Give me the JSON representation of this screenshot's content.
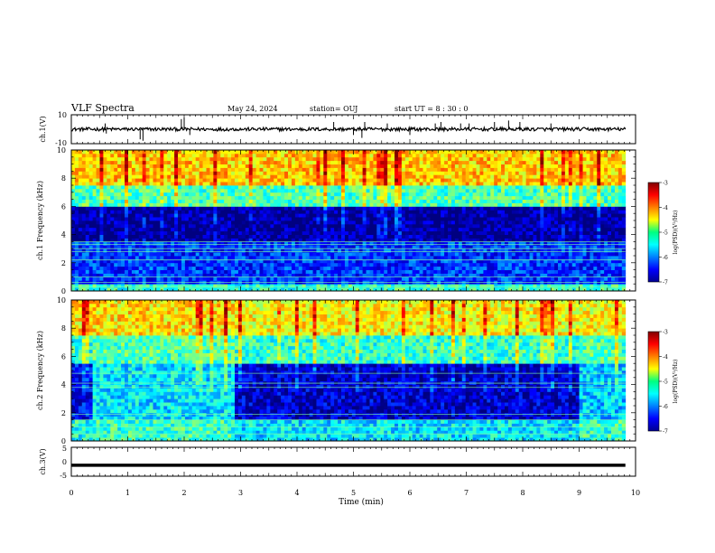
{
  "header": {
    "title": "VLF Spectra",
    "date": "May 24, 2024",
    "station": "station= OUJ",
    "start": "start UT = 8 : 30 : 0"
  },
  "chart_data": [
    {
      "type": "line",
      "panel": "ch1-waveform",
      "ylabel": "ch.1(V)",
      "ylim": [
        -10,
        10
      ],
      "yticks": [
        "10",
        "-10"
      ],
      "baseline": 0,
      "noise_amplitude": 1.2,
      "spikes": [
        {
          "x": 0.6,
          "y": 4
        },
        {
          "x": 0.62,
          "y": -3
        },
        {
          "x": 1.22,
          "y": -7
        },
        {
          "x": 1.27,
          "y": -8
        },
        {
          "x": 1.95,
          "y": 7
        },
        {
          "x": 2.0,
          "y": 8
        },
        {
          "x": 2.1,
          "y": -4
        },
        {
          "x": 4.65,
          "y": 5
        },
        {
          "x": 5.0,
          "y": -4
        },
        {
          "x": 5.15,
          "y": -6
        },
        {
          "x": 5.2,
          "y": 5
        },
        {
          "x": 5.6,
          "y": 4
        },
        {
          "x": 6.0,
          "y": -4
        },
        {
          "x": 6.45,
          "y": 4
        },
        {
          "x": 6.55,
          "y": 5
        },
        {
          "x": 6.9,
          "y": 4
        },
        {
          "x": 7.05,
          "y": 4
        },
        {
          "x": 7.5,
          "y": 5
        },
        {
          "x": 7.75,
          "y": 6
        },
        {
          "x": 7.95,
          "y": 5
        },
        {
          "x": 8.5,
          "y": 4
        }
      ],
      "xlim": [
        0,
        10
      ],
      "data_end_min": 9.82
    },
    {
      "type": "heatmap",
      "panel": "ch1-spectrogram",
      "ylabel": "ch.1 Frequency (kHz)",
      "ylim": [
        0,
        10
      ],
      "yticks": [
        "0",
        "2",
        "4",
        "6",
        "8",
        "10"
      ],
      "xlim": [
        0,
        10
      ],
      "colorbar": {
        "label": "log(PSD)(V²/Hz)",
        "range": [
          -7,
          -3
        ],
        "ticks": [
          "-3",
          "-4",
          "-5",
          "-6",
          "-7"
        ]
      },
      "bands": [
        {
          "f_from": 0,
          "f_to": 0.5,
          "log_psd": -5.3
        },
        {
          "f_from": 0.5,
          "f_to": 3.5,
          "log_psd": -6.3
        },
        {
          "f_from": 3.5,
          "f_to": 6.0,
          "log_psd": -6.9
        },
        {
          "f_from": 6.0,
          "f_to": 7.5,
          "log_psd": -5.2
        },
        {
          "f_from": 7.5,
          "f_to": 10,
          "log_psd": -4.3
        }
      ],
      "line_frequencies_khz": [
        0.3,
        0.6,
        1.0,
        2.2,
        2.8,
        3.0,
        3.3,
        3.5
      ],
      "data_end_min": 9.82
    },
    {
      "type": "heatmap",
      "panel": "ch2-spectrogram",
      "ylabel": "ch.2 Frequency (kHz)",
      "ylim": [
        0,
        10
      ],
      "yticks": [
        "0",
        "2",
        "4",
        "6",
        "8",
        "10"
      ],
      "xlim": [
        0,
        10
      ],
      "colorbar": {
        "label": "log(PSD)(V²/Hz)",
        "range": [
          -7,
          -3
        ],
        "ticks": [
          "-3",
          "-4",
          "-5",
          "-6",
          "-7"
        ]
      },
      "segments": [
        {
          "t_from": 0.0,
          "t_to": 0.4,
          "bands": [
            [
              0,
              1.5,
              -5.4
            ],
            [
              1.5,
              5.5,
              -6.5
            ],
            [
              5.5,
              7.5,
              -5.3
            ],
            [
              7.5,
              10,
              -4.4
            ]
          ]
        },
        {
          "t_from": 0.4,
          "t_to": 2.9,
          "bands": [
            [
              0,
              1.5,
              -5.3
            ],
            [
              1.5,
              5.5,
              -5.6
            ],
            [
              5.5,
              7.5,
              -5.2
            ],
            [
              7.5,
              10,
              -4.4
            ]
          ]
        },
        {
          "t_from": 2.9,
          "t_to": 9.0,
          "bands": [
            [
              0,
              1.5,
              -5.6
            ],
            [
              1.5,
              5.5,
              -6.7
            ],
            [
              5.5,
              7.5,
              -5.3
            ],
            [
              7.5,
              10,
              -4.5
            ]
          ]
        },
        {
          "t_from": 9.0,
          "t_to": 9.82,
          "bands": [
            [
              0,
              1.5,
              -5.3
            ],
            [
              1.5,
              5.5,
              -5.7
            ],
            [
              5.5,
              7.5,
              -5.2
            ],
            [
              7.5,
              10,
              -4.5
            ]
          ]
        }
      ],
      "line_frequencies_khz": [
        0.5,
        1.0,
        1.5,
        1.9,
        3.8,
        4.1,
        4.8
      ],
      "data_end_min": 9.82
    },
    {
      "type": "line",
      "panel": "ch3-waveform",
      "ylabel": "ch.3(V)",
      "ylim": [
        -5,
        5
      ],
      "yticks": [
        "5",
        "0",
        "-5"
      ],
      "baseline": -1.2,
      "xlim": [
        0,
        10
      ],
      "data_end_min": 9.82
    }
  ],
  "x_axis": {
    "label": "Time (min)",
    "ticks": [
      "0",
      "1",
      "2",
      "3",
      "4",
      "5",
      "6",
      "7",
      "8",
      "9",
      "10"
    ]
  }
}
